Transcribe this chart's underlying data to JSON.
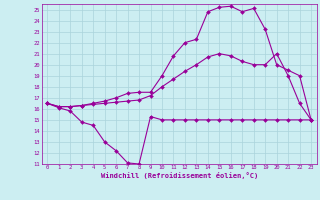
{
  "xlabel": "Windchill (Refroidissement éolien,°C)",
  "xlim": [
    -0.5,
    23.5
  ],
  "ylim": [
    11,
    25.5
  ],
  "xticks": [
    0,
    1,
    2,
    3,
    4,
    5,
    6,
    7,
    8,
    9,
    10,
    11,
    12,
    13,
    14,
    15,
    16,
    17,
    18,
    19,
    20,
    21,
    22,
    23
  ],
  "yticks": [
    11,
    12,
    13,
    14,
    15,
    16,
    17,
    18,
    19,
    20,
    21,
    22,
    23,
    24,
    25
  ],
  "bg_color": "#cceef2",
  "grid_color": "#aad4dc",
  "line_color": "#990099",
  "line1_x": [
    0,
    1,
    2,
    3,
    4,
    5,
    6,
    7,
    8,
    9,
    10,
    11,
    12,
    13,
    14,
    15,
    16,
    17,
    18,
    19,
    20,
    21,
    22,
    23
  ],
  "line1_y": [
    16.5,
    16.1,
    15.8,
    14.8,
    14.5,
    13.0,
    12.2,
    11.1,
    11.0,
    15.3,
    15.0,
    15.0,
    15.0,
    15.0,
    15.0,
    15.0,
    15.0,
    15.0,
    15.0,
    15.0,
    15.0,
    15.0,
    15.0,
    15.0
  ],
  "line2_x": [
    0,
    1,
    2,
    3,
    4,
    5,
    6,
    7,
    8,
    9,
    10,
    11,
    12,
    13,
    14,
    15,
    16,
    17,
    18,
    19,
    20,
    21,
    22,
    23
  ],
  "line2_y": [
    16.5,
    16.2,
    16.2,
    16.3,
    16.4,
    16.5,
    16.6,
    16.7,
    16.8,
    17.2,
    18.0,
    18.7,
    19.4,
    20.0,
    20.7,
    21.0,
    20.8,
    20.3,
    20.0,
    20.0,
    21.0,
    19.0,
    16.5,
    15.0
  ],
  "line3_x": [
    0,
    1,
    2,
    3,
    4,
    5,
    6,
    7,
    8,
    9,
    10,
    11,
    12,
    13,
    14,
    15,
    16,
    17,
    18,
    19,
    20,
    21,
    22,
    23
  ],
  "line3_y": [
    16.5,
    16.2,
    16.2,
    16.3,
    16.5,
    16.7,
    17.0,
    17.4,
    17.5,
    17.5,
    19.0,
    20.8,
    22.0,
    22.3,
    24.8,
    25.2,
    25.3,
    24.8,
    25.1,
    23.2,
    20.0,
    19.5,
    19.0,
    15.0
  ],
  "marker": "D",
  "markersize": 2,
  "linewidth": 0.8
}
